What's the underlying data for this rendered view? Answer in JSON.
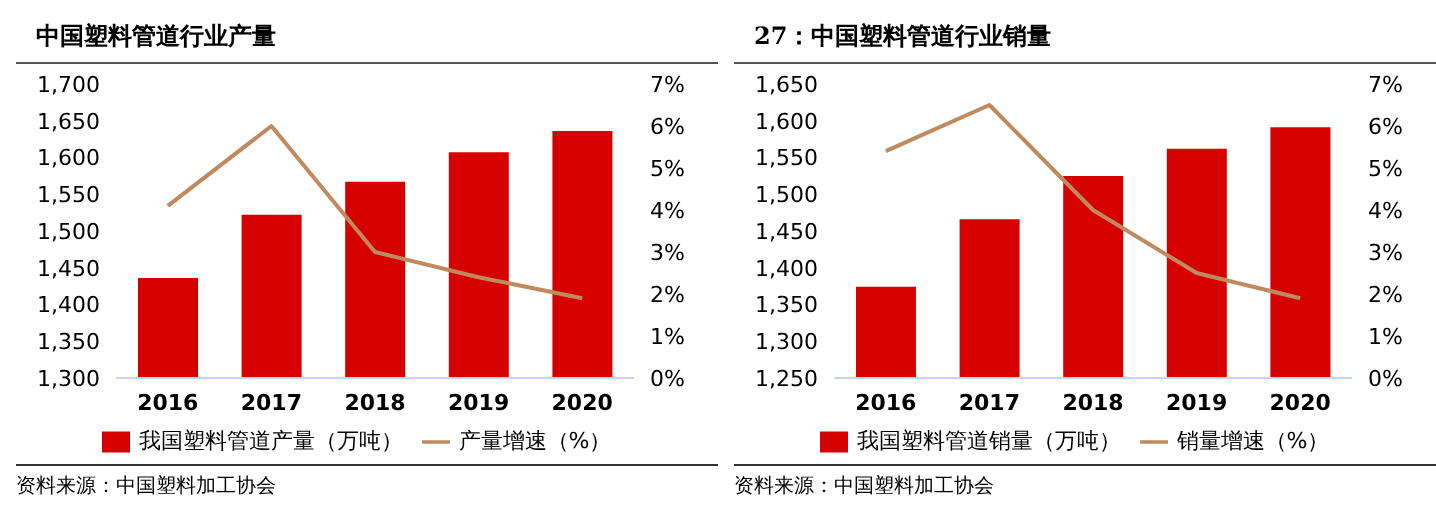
{
  "chart_data": [
    {
      "type": "bar",
      "title": "中国塑料管道行业产量",
      "categories": [
        "2016",
        "2017",
        "2018",
        "2019",
        "2020"
      ],
      "series": [
        {
          "name": "我国塑料管道产量（万吨）",
          "color": "#d60000",
          "values": [
            1436,
            1522,
            1567,
            1607,
            1636
          ]
        },
        {
          "name": "产量增速（%）",
          "type": "line",
          "axis": "y2",
          "color": "#bf8a5e",
          "values": [
            4.1,
            6.0,
            3.0,
            2.4,
            1.9
          ]
        }
      ],
      "ylim": [
        1300,
        1700
      ],
      "yticks": [
        {
          "value": 1300,
          "label": "1,300"
        },
        {
          "value": 1350,
          "label": "1,350"
        },
        {
          "value": 1400,
          "label": "1,400"
        },
        {
          "value": 1450,
          "label": "1,450"
        },
        {
          "value": 1500,
          "label": "1,500"
        },
        {
          "value": 1550,
          "label": "1,550"
        },
        {
          "value": 1600,
          "label": "1,600"
        },
        {
          "value": 1650,
          "label": "1,650"
        },
        {
          "value": 1700,
          "label": "1,700"
        }
      ],
      "y2lim": [
        0,
        7
      ],
      "y2ticks": [
        {
          "value": 0,
          "label": "0%"
        },
        {
          "value": 1,
          "label": "1%"
        },
        {
          "value": 2,
          "label": "2%"
        },
        {
          "value": 3,
          "label": "3%"
        },
        {
          "value": 4,
          "label": "4%"
        },
        {
          "value": 5,
          "label": "5%"
        },
        {
          "value": 6,
          "label": "6%"
        },
        {
          "value": 7,
          "label": "7%"
        }
      ],
      "grid": false,
      "legend": "bottom",
      "marker": "none",
      "annotations": [
        "资料来源：中国塑料加工协会"
      ]
    },
    {
      "type": "bar",
      "title": "27：中国塑料管道行业销量",
      "categories": [
        "2016",
        "2017",
        "2018",
        "2019",
        "2020"
      ],
      "series": [
        {
          "name": "我国塑料管道销量（万吨）",
          "color": "#d60000",
          "values": [
            1374,
            1466,
            1525,
            1562,
            1591
          ]
        },
        {
          "name": "销量增速（%）",
          "type": "line",
          "axis": "y2",
          "color": "#bf8a5e",
          "values": [
            5.4,
            6.5,
            4.0,
            2.5,
            1.9
          ]
        }
      ],
      "ylim": [
        1250,
        1650
      ],
      "yticks": [
        {
          "value": 1250,
          "label": "1,250"
        },
        {
          "value": 1300,
          "label": "1,300"
        },
        {
          "value": 1350,
          "label": "1,350"
        },
        {
          "value": 1400,
          "label": "1,400"
        },
        {
          "value": 1450,
          "label": "1,450"
        },
        {
          "value": 1500,
          "label": "1,500"
        },
        {
          "value": 1550,
          "label": "1,550"
        },
        {
          "value": 1600,
          "label": "1,600"
        },
        {
          "value": 1650,
          "label": "1,650"
        }
      ],
      "y2lim": [
        0,
        7
      ],
      "y2ticks": [
        {
          "value": 0,
          "label": "0%"
        },
        {
          "value": 1,
          "label": "1%"
        },
        {
          "value": 2,
          "label": "2%"
        },
        {
          "value": 3,
          "label": "3%"
        },
        {
          "value": 4,
          "label": "4%"
        },
        {
          "value": 5,
          "label": "5%"
        },
        {
          "value": 6,
          "label": "6%"
        },
        {
          "value": 7,
          "label": "7%"
        }
      ],
      "grid": false,
      "legend": "bottom",
      "marker": "none",
      "annotations": [
        "资料来源：中国塑料加工协会"
      ]
    }
  ]
}
